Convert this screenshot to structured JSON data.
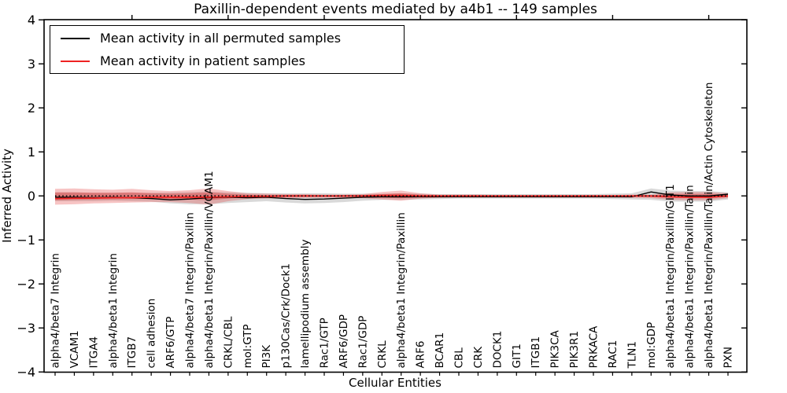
{
  "figure": {
    "title": "Paxillin-dependent events mediated by a4b1 -- 149 samples",
    "background": "#ffffff"
  },
  "legend": {
    "items": [
      {
        "label": "Mean activity in all permuted samples",
        "color": "#000000"
      },
      {
        "label": "Mean activity in patient samples",
        "color": "#ee2222"
      }
    ]
  },
  "chart_data": {
    "type": "line",
    "title": "Paxillin-dependent events mediated by a4b1 -- 149 samples",
    "xlabel": "Cellular Entities",
    "ylabel": "Inferred Activity",
    "ylim": [
      -4,
      4
    ],
    "yticks": [
      -4,
      -3,
      -2,
      -1,
      0,
      1,
      2,
      3,
      4
    ],
    "top_tick_indices": [
      4,
      9,
      14,
      19,
      24,
      29,
      34
    ],
    "grid": false,
    "legend_position": "upper left",
    "zero_line": {
      "style": "dotted",
      "color": "#000000",
      "y": 0
    },
    "categories": [
      "alpha4/beta7 Integrin",
      "VCAM1",
      "ITGA4",
      "alpha4/beta1 Integrin",
      "ITGB7",
      "cell adhesion",
      "ARF6/GTP",
      "alpha4/beta7 Integrin/Paxillin",
      "alpha4/beta1 Integrin/Paxillin/VCAM1",
      "CRKL/CBL",
      "mol:GTP",
      "PI3K",
      "p130Cas/Crk/Dock1",
      "lamellipodium assembly",
      "Rac1/GTP",
      "ARF6/GDP",
      "Rac1/GDP",
      "CRKL",
      "alpha4/beta1 Integrin/Paxillin",
      "ARF6",
      "BCAR1",
      "CBL",
      "CRK",
      "DOCK1",
      "GIT1",
      "ITGB1",
      "PIK3CA",
      "PIK3R1",
      "PRKACA",
      "RAC1",
      "TLN1",
      "mol:GDP",
      "alpha4/beta1 Integrin/Paxillin/GIT1",
      "alpha4/beta1 Integrin/Paxillin/Talin",
      "alpha4/beta1 Integrin/Paxillin/Talin/Actin Cytoskeleton",
      "PXN"
    ],
    "series": [
      {
        "name": "Mean activity in all permuted samples",
        "color": "#000000",
        "linewidth": 1.4,
        "values": [
          -0.03,
          -0.03,
          -0.04,
          -0.03,
          -0.04,
          -0.06,
          -0.09,
          -0.07,
          -0.04,
          -0.03,
          -0.04,
          -0.03,
          -0.06,
          -0.08,
          -0.07,
          -0.05,
          -0.03,
          -0.02,
          -0.02,
          -0.02,
          -0.02,
          -0.02,
          -0.02,
          -0.02,
          -0.02,
          -0.02,
          -0.02,
          -0.02,
          -0.02,
          -0.02,
          -0.02,
          0.09,
          0.02,
          0.0,
          0.0,
          0.04
        ]
      },
      {
        "name": "Mean activity in patient samples",
        "color": "#ee2222",
        "linewidth": 1.8,
        "values": [
          -0.06,
          -0.05,
          -0.05,
          -0.04,
          -0.04,
          -0.03,
          -0.03,
          -0.03,
          -0.03,
          -0.02,
          -0.01,
          -0.01,
          0.0,
          0.0,
          0.0,
          0.0,
          0.0,
          0.01,
          0.01,
          0.0,
          0.0,
          0.0,
          0.0,
          0.0,
          0.0,
          0.0,
          0.0,
          0.0,
          0.0,
          0.0,
          0.0,
          0.0,
          -0.02,
          -0.03,
          -0.03,
          0.0
        ]
      }
    ],
    "bands": [
      {
        "name": "permuted-samples-range",
        "color": "rgba(120,120,120,0.28)",
        "hi": [
          0.08,
          0.08,
          0.07,
          0.07,
          0.07,
          0.07,
          0.08,
          0.09,
          0.1,
          0.08,
          0.07,
          0.06,
          0.06,
          0.06,
          0.06,
          0.05,
          0.05,
          0.05,
          0.06,
          0.05,
          0.04,
          0.04,
          0.04,
          0.04,
          0.04,
          0.04,
          0.04,
          0.04,
          0.04,
          0.05,
          0.06,
          0.17,
          0.12,
          0.11,
          0.11,
          0.08
        ],
        "lo": [
          -0.12,
          -0.12,
          -0.12,
          -0.11,
          -0.12,
          -0.13,
          -0.17,
          -0.19,
          -0.19,
          -0.16,
          -0.14,
          -0.12,
          -0.15,
          -0.17,
          -0.16,
          -0.14,
          -0.11,
          -0.09,
          -0.09,
          -0.08,
          -0.07,
          -0.06,
          -0.06,
          -0.06,
          -0.06,
          -0.06,
          -0.06,
          -0.06,
          -0.06,
          -0.07,
          -0.08,
          -0.09,
          -0.13,
          -0.13,
          -0.13,
          -0.08
        ]
      },
      {
        "name": "patient-samples-range-outer",
        "color": "rgba(231,76,76,0.33)",
        "hi": [
          0.16,
          0.17,
          0.15,
          0.14,
          0.16,
          0.13,
          0.11,
          0.13,
          0.17,
          0.11,
          0.06,
          0.05,
          0.04,
          0.04,
          0.03,
          0.03,
          0.04,
          0.09,
          0.12,
          0.06,
          0.03,
          0.03,
          0.03,
          0.02,
          0.02,
          0.02,
          0.02,
          0.02,
          0.02,
          0.02,
          0.03,
          0.03,
          0.08,
          0.09,
          0.09,
          0.06
        ],
        "lo": [
          -0.2,
          -0.19,
          -0.17,
          -0.16,
          -0.15,
          -0.14,
          -0.14,
          -0.16,
          -0.2,
          -0.12,
          -0.07,
          -0.06,
          -0.05,
          -0.04,
          -0.04,
          -0.04,
          -0.05,
          -0.08,
          -0.11,
          -0.06,
          -0.04,
          -0.03,
          -0.03,
          -0.03,
          -0.03,
          -0.03,
          -0.03,
          -0.03,
          -0.03,
          -0.03,
          -0.04,
          -0.05,
          -0.09,
          -0.1,
          -0.1,
          -0.05
        ]
      },
      {
        "name": "patient-samples-range-inner",
        "color": "rgba(214,39,39,0.38)",
        "hi": [
          0.08,
          0.08,
          0.07,
          0.07,
          0.08,
          0.06,
          0.05,
          0.06,
          0.08,
          0.05,
          0.03,
          0.02,
          0.02,
          0.02,
          0.015,
          0.015,
          0.02,
          0.04,
          0.06,
          0.03,
          0.015,
          0.015,
          0.015,
          0.01,
          0.01,
          0.01,
          0.01,
          0.01,
          0.01,
          0.01,
          0.015,
          0.015,
          0.04,
          0.045,
          0.045,
          0.03
        ],
        "lo": [
          -0.1,
          -0.09,
          -0.08,
          -0.08,
          -0.07,
          -0.07,
          -0.07,
          -0.08,
          -0.1,
          -0.06,
          -0.03,
          -0.03,
          -0.025,
          -0.02,
          -0.02,
          -0.02,
          -0.025,
          -0.04,
          -0.055,
          -0.03,
          -0.02,
          -0.015,
          -0.015,
          -0.015,
          -0.015,
          -0.015,
          -0.015,
          -0.015,
          -0.015,
          -0.015,
          -0.02,
          -0.025,
          -0.045,
          -0.05,
          -0.05,
          -0.025
        ]
      }
    ]
  }
}
